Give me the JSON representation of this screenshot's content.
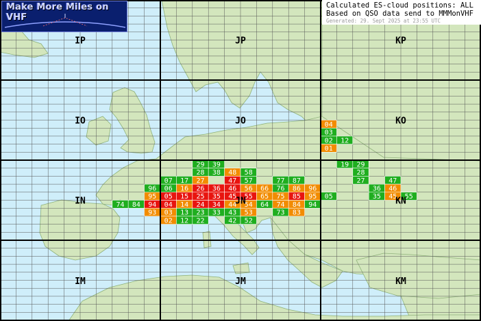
{
  "logo": {
    "text": "Make More Miles on VHF"
  },
  "info": {
    "line1": "Calculated ES-cloud positions: ALL",
    "line2": "Based on QSO data send to MMMonVHF",
    "line3": "Generated: 29. Sept 2025 at 23:55 UTC"
  },
  "colors": {
    "sea": "#cfeefa",
    "land": "#d3e6bd",
    "green": "#1fae1f",
    "orange": "#f28c00",
    "red": "#e8140f",
    "big_grid": "#000000",
    "small_grid": "#555555"
  },
  "fields": [
    {
      "label": "IP",
      "col": 0,
      "row": 0
    },
    {
      "label": "JP",
      "col": 1,
      "row": 0
    },
    {
      "label": "KP",
      "col": 2,
      "row": 0
    },
    {
      "label": "IO",
      "col": 0,
      "row": 1
    },
    {
      "label": "JO",
      "col": 1,
      "row": 1
    },
    {
      "label": "KO",
      "col": 2,
      "row": 1
    },
    {
      "label": "IN",
      "col": 0,
      "row": 2
    },
    {
      "label": "JN",
      "col": 1,
      "row": 2
    },
    {
      "label": "KN",
      "col": 2,
      "row": 2
    },
    {
      "label": "IM",
      "col": 0,
      "row": 3
    },
    {
      "label": "JM",
      "col": 1,
      "row": 3
    },
    {
      "label": "KM",
      "col": 2,
      "row": 3
    }
  ],
  "squares": [
    {
      "field": "KO",
      "sq": "04",
      "level": "orange"
    },
    {
      "field": "KO",
      "sq": "03",
      "level": "green"
    },
    {
      "field": "KO",
      "sq": "02",
      "level": "green"
    },
    {
      "field": "KO",
      "sq": "12",
      "level": "green"
    },
    {
      "field": "KO",
      "sq": "01",
      "level": "orange"
    },
    {
      "field": "JN",
      "sq": "29",
      "level": "green"
    },
    {
      "field": "JN",
      "sq": "39",
      "level": "green"
    },
    {
      "field": "JN",
      "sq": "28",
      "level": "green"
    },
    {
      "field": "JN",
      "sq": "38",
      "level": "green"
    },
    {
      "field": "JN",
      "sq": "48",
      "level": "orange"
    },
    {
      "field": "JN",
      "sq": "58",
      "level": "green"
    },
    {
      "field": "JN",
      "sq": "07",
      "level": "green"
    },
    {
      "field": "JN",
      "sq": "17",
      "level": "green"
    },
    {
      "field": "JN",
      "sq": "27",
      "level": "orange"
    },
    {
      "field": "JN",
      "sq": "47",
      "level": "red"
    },
    {
      "field": "JN",
      "sq": "57",
      "level": "green"
    },
    {
      "field": "JN",
      "sq": "77",
      "level": "green"
    },
    {
      "field": "JN",
      "sq": "87",
      "level": "green"
    },
    {
      "field": "JN",
      "sq": "06",
      "level": "green"
    },
    {
      "field": "JN",
      "sq": "16",
      "level": "orange"
    },
    {
      "field": "JN",
      "sq": "26",
      "level": "red"
    },
    {
      "field": "JN",
      "sq": "36",
      "level": "red"
    },
    {
      "field": "JN",
      "sq": "46",
      "level": "red"
    },
    {
      "field": "JN",
      "sq": "56",
      "level": "orange"
    },
    {
      "field": "JN",
      "sq": "66",
      "level": "orange"
    },
    {
      "field": "JN",
      "sq": "76",
      "level": "green"
    },
    {
      "field": "JN",
      "sq": "86",
      "level": "orange"
    },
    {
      "field": "JN",
      "sq": "96",
      "level": "orange"
    },
    {
      "field": "JN",
      "sq": "05",
      "level": "red"
    },
    {
      "field": "JN",
      "sq": "15",
      "level": "red"
    },
    {
      "field": "JN",
      "sq": "25",
      "level": "red"
    },
    {
      "field": "JN",
      "sq": "35",
      "level": "red"
    },
    {
      "field": "JN",
      "sq": "45",
      "level": "red"
    },
    {
      "field": "JN",
      "sq": "55",
      "level": "red"
    },
    {
      "field": "JN",
      "sq": "65",
      "level": "orange"
    },
    {
      "field": "JN",
      "sq": "75",
      "level": "orange"
    },
    {
      "field": "JN",
      "sq": "85",
      "level": "red"
    },
    {
      "field": "JN",
      "sq": "95",
      "level": "orange"
    },
    {
      "field": "JN",
      "sq": "04",
      "level": "red"
    },
    {
      "field": "JN",
      "sq": "14",
      "level": "orange"
    },
    {
      "field": "JN",
      "sq": "24",
      "level": "red"
    },
    {
      "field": "JN",
      "sq": "34",
      "level": "red"
    },
    {
      "field": "JN",
      "sq": "44",
      "level": "orange"
    },
    {
      "field": "JN",
      "sq": "54",
      "level": "orange"
    },
    {
      "field": "JN",
      "sq": "64",
      "level": "green"
    },
    {
      "field": "JN",
      "sq": "74",
      "level": "orange"
    },
    {
      "field": "JN",
      "sq": "84",
      "level": "orange"
    },
    {
      "field": "JN",
      "sq": "94",
      "level": "green"
    },
    {
      "field": "JN",
      "sq": "03",
      "level": "orange"
    },
    {
      "field": "JN",
      "sq": "13",
      "level": "green"
    },
    {
      "field": "JN",
      "sq": "23",
      "level": "green"
    },
    {
      "field": "JN",
      "sq": "33",
      "level": "green"
    },
    {
      "field": "JN",
      "sq": "43",
      "level": "green"
    },
    {
      "field": "JN",
      "sq": "53",
      "level": "orange"
    },
    {
      "field": "JN",
      "sq": "73",
      "level": "green"
    },
    {
      "field": "JN",
      "sq": "83",
      "level": "orange"
    },
    {
      "field": "JN",
      "sq": "02",
      "level": "orange"
    },
    {
      "field": "JN",
      "sq": "12",
      "level": "green"
    },
    {
      "field": "JN",
      "sq": "22",
      "level": "green"
    },
    {
      "field": "JN",
      "sq": "42",
      "level": "green"
    },
    {
      "field": "JN",
      "sq": "52",
      "level": "green"
    },
    {
      "field": "IN",
      "sq": "96",
      "level": "green"
    },
    {
      "field": "IN",
      "sq": "95",
      "level": "orange"
    },
    {
      "field": "IN",
      "sq": "74",
      "level": "green"
    },
    {
      "field": "IN",
      "sq": "84",
      "level": "green"
    },
    {
      "field": "IN",
      "sq": "94",
      "level": "red"
    },
    {
      "field": "IN",
      "sq": "93",
      "level": "orange"
    },
    {
      "field": "KN",
      "sq": "19",
      "level": "green"
    },
    {
      "field": "KN",
      "sq": "29",
      "level": "green"
    },
    {
      "field": "KN",
      "sq": "28",
      "level": "green"
    },
    {
      "field": "KN",
      "sq": "27",
      "level": "green"
    },
    {
      "field": "KN",
      "sq": "47",
      "level": "green"
    },
    {
      "field": "KN",
      "sq": "36",
      "level": "green"
    },
    {
      "field": "KN",
      "sq": "46",
      "level": "orange"
    },
    {
      "field": "KN",
      "sq": "05",
      "level": "green"
    },
    {
      "field": "KN",
      "sq": "35",
      "level": "green"
    },
    {
      "field": "KN",
      "sq": "45",
      "level": "orange"
    },
    {
      "field": "KN",
      "sq": "55",
      "level": "green"
    }
  ]
}
